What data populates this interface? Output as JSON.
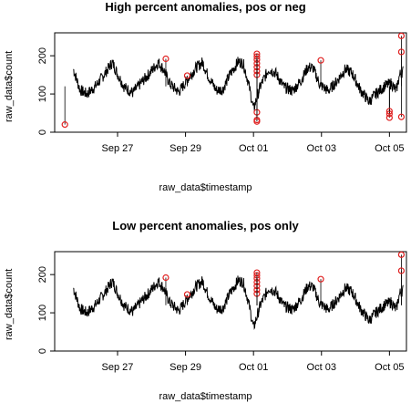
{
  "chart_data": [
    {
      "type": "line",
      "title": "High percent anomalies, pos or neg",
      "xlabel": "raw_data$timestamp",
      "ylabel": "raw_data$count",
      "x_ticks": [
        "Sep 27",
        "Sep 29",
        "Oct 01",
        "Oct 03",
        "Oct 05"
      ],
      "x_tick_days": [
        1,
        3,
        5,
        7,
        9
      ],
      "y_ticks": [
        0,
        100,
        200
      ],
      "xlim_days": [
        -0.85,
        9.5
      ],
      "ylim": [
        0,
        260
      ],
      "grid": false,
      "series": [
        {
          "points": [
            [
              -0.3,
              165
            ],
            [
              -0.1,
              110
            ],
            [
              0.1,
              100
            ],
            [
              0.35,
              120
            ],
            [
              0.6,
              150
            ],
            [
              0.85,
              183
            ],
            [
              1.0,
              152
            ],
            [
              1.2,
              118
            ],
            [
              1.45,
              103
            ],
            [
              1.7,
              130
            ],
            [
              1.95,
              155
            ],
            [
              2.2,
              183
            ],
            [
              2.35,
              165
            ],
            [
              2.55,
              125
            ],
            [
              2.8,
              105
            ],
            [
              3.0,
              130
            ],
            [
              3.3,
              168
            ],
            [
              3.5,
              183
            ],
            [
              3.65,
              150
            ],
            [
              3.9,
              110
            ],
            [
              4.1,
              112
            ],
            [
              4.3,
              150
            ],
            [
              4.55,
              185
            ],
            [
              4.7,
              180
            ],
            [
              4.85,
              130
            ],
            [
              5.0,
              60
            ],
            [
              5.2,
              120
            ],
            [
              5.45,
              165
            ],
            [
              5.65,
              155
            ],
            [
              5.9,
              118
            ],
            [
              6.15,
              108
            ],
            [
              6.4,
              135
            ],
            [
              6.6,
              170
            ],
            [
              6.75,
              168
            ],
            [
              6.95,
              125
            ],
            [
              7.2,
              108
            ],
            [
              7.45,
              133
            ],
            [
              7.7,
              165
            ],
            [
              7.9,
              155
            ],
            [
              8.15,
              110
            ],
            [
              8.4,
              80
            ],
            [
              8.6,
              100
            ],
            [
              8.85,
              120
            ],
            [
              9.05,
              128
            ],
            [
              9.2,
              108
            ],
            [
              9.3,
              150
            ],
            [
              9.4,
              160
            ]
          ],
          "band": 15
        }
      ],
      "anomalies": [
        [
          -0.55,
          20
        ],
        [
          2.42,
          192
        ],
        [
          3.05,
          148
        ],
        [
          5.1,
          52
        ],
        [
          5.1,
          32
        ],
        [
          5.1,
          28
        ],
        [
          5.1,
          150
        ],
        [
          5.1,
          160
        ],
        [
          5.1,
          170
        ],
        [
          5.1,
          180
        ],
        [
          5.1,
          190
        ],
        [
          5.1,
          198
        ],
        [
          5.1,
          205
        ],
        [
          6.98,
          188
        ],
        [
          9.0,
          38
        ],
        [
          9.0,
          48
        ],
        [
          9.0,
          55
        ],
        [
          9.35,
          252
        ],
        [
          9.35,
          210
        ],
        [
          9.35,
          40
        ]
      ],
      "anomaly_color": "#e02020"
    },
    {
      "type": "line",
      "title": "Low percent anomalies, pos only",
      "xlabel": "raw_data$timestamp",
      "ylabel": "raw_data$count",
      "x_ticks": [
        "Sep 27",
        "Sep 29",
        "Oct 01",
        "Oct 03",
        "Oct 05"
      ],
      "x_tick_days": [
        1,
        3,
        5,
        7,
        9
      ],
      "y_ticks": [
        0,
        100,
        200
      ],
      "xlim_days": [
        -0.85,
        9.5
      ],
      "ylim": [
        0,
        260
      ],
      "grid": false,
      "series": [
        {
          "points": [
            [
              -0.3,
              165
            ],
            [
              -0.1,
              110
            ],
            [
              0.1,
              100
            ],
            [
              0.35,
              120
            ],
            [
              0.6,
              150
            ],
            [
              0.85,
              183
            ],
            [
              1.0,
              152
            ],
            [
              1.2,
              118
            ],
            [
              1.45,
              103
            ],
            [
              1.7,
              130
            ],
            [
              1.95,
              155
            ],
            [
              2.2,
              183
            ],
            [
              2.35,
              165
            ],
            [
              2.55,
              125
            ],
            [
              2.8,
              105
            ],
            [
              3.0,
              130
            ],
            [
              3.3,
              168
            ],
            [
              3.5,
              183
            ],
            [
              3.65,
              150
            ],
            [
              3.9,
              110
            ],
            [
              4.1,
              112
            ],
            [
              4.3,
              150
            ],
            [
              4.55,
              185
            ],
            [
              4.7,
              180
            ],
            [
              4.85,
              130
            ],
            [
              5.0,
              60
            ],
            [
              5.2,
              120
            ],
            [
              5.45,
              165
            ],
            [
              5.65,
              155
            ],
            [
              5.9,
              118
            ],
            [
              6.15,
              108
            ],
            [
              6.4,
              135
            ],
            [
              6.6,
              170
            ],
            [
              6.75,
              168
            ],
            [
              6.95,
              125
            ],
            [
              7.2,
              108
            ],
            [
              7.45,
              133
            ],
            [
              7.7,
              165
            ],
            [
              7.9,
              155
            ],
            [
              8.15,
              110
            ],
            [
              8.4,
              80
            ],
            [
              8.6,
              100
            ],
            [
              8.85,
              120
            ],
            [
              9.05,
              128
            ],
            [
              9.2,
              108
            ],
            [
              9.3,
              150
            ],
            [
              9.4,
              160
            ]
          ],
          "band": 15
        }
      ],
      "anomalies": [
        [
          2.42,
          192
        ],
        [
          3.05,
          148
        ],
        [
          5.1,
          150
        ],
        [
          5.1,
          160
        ],
        [
          5.1,
          170
        ],
        [
          5.1,
          180
        ],
        [
          5.1,
          190
        ],
        [
          5.1,
          198
        ],
        [
          5.1,
          205
        ],
        [
          6.98,
          188
        ],
        [
          9.35,
          252
        ],
        [
          9.35,
          210
        ]
      ],
      "anomaly_color": "#e02020"
    }
  ]
}
